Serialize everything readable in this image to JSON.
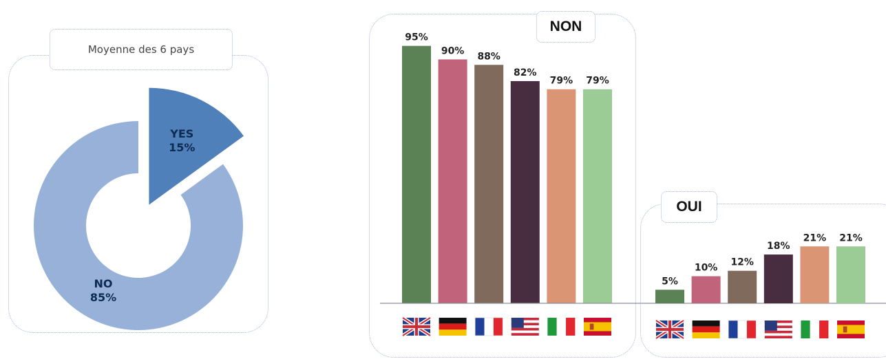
{
  "chart_data": [
    {
      "type": "pie",
      "title": "Moyenne des 6 pays",
      "slices": [
        {
          "label": "YES",
          "value": 15,
          "value_text": "15%",
          "color": "#4f80b9",
          "text_color": "#0d2a52"
        },
        {
          "label": "NO",
          "value": 85,
          "value_text": "85%",
          "color": "#97b1d8",
          "text_color": "#0d2a52"
        }
      ]
    },
    {
      "type": "bar",
      "title": "NON",
      "categories": [
        "UK",
        "Germany",
        "France",
        "USA",
        "Italy",
        "Spain"
      ],
      "values": [
        95,
        90,
        88,
        82,
        79,
        79
      ],
      "value_labels": [
        "95%",
        "90%",
        "88%",
        "82%",
        "79%",
        "79%"
      ],
      "colors": [
        "#5a8255",
        "#c0637b",
        "#806a5c",
        "#482c3f",
        "#da9674",
        "#9ccc96"
      ],
      "ylim": [
        0,
        100
      ]
    },
    {
      "type": "bar",
      "title": "OUI",
      "categories": [
        "UK",
        "Germany",
        "France",
        "USA",
        "Italy",
        "Spain"
      ],
      "values": [
        5,
        10,
        12,
        18,
        21,
        21
      ],
      "value_labels": [
        "5%",
        "10%",
        "12%",
        "18%",
        "21%",
        "21%"
      ],
      "colors": [
        "#5a8255",
        "#c0637b",
        "#806a5c",
        "#482c3f",
        "#da9674",
        "#9ccc96"
      ],
      "ylim": [
        0,
        100
      ]
    }
  ],
  "flags": [
    "uk-flag-icon",
    "germany-flag-icon",
    "france-flag-icon",
    "usa-flag-icon",
    "italy-flag-icon",
    "spain-flag-icon"
  ]
}
